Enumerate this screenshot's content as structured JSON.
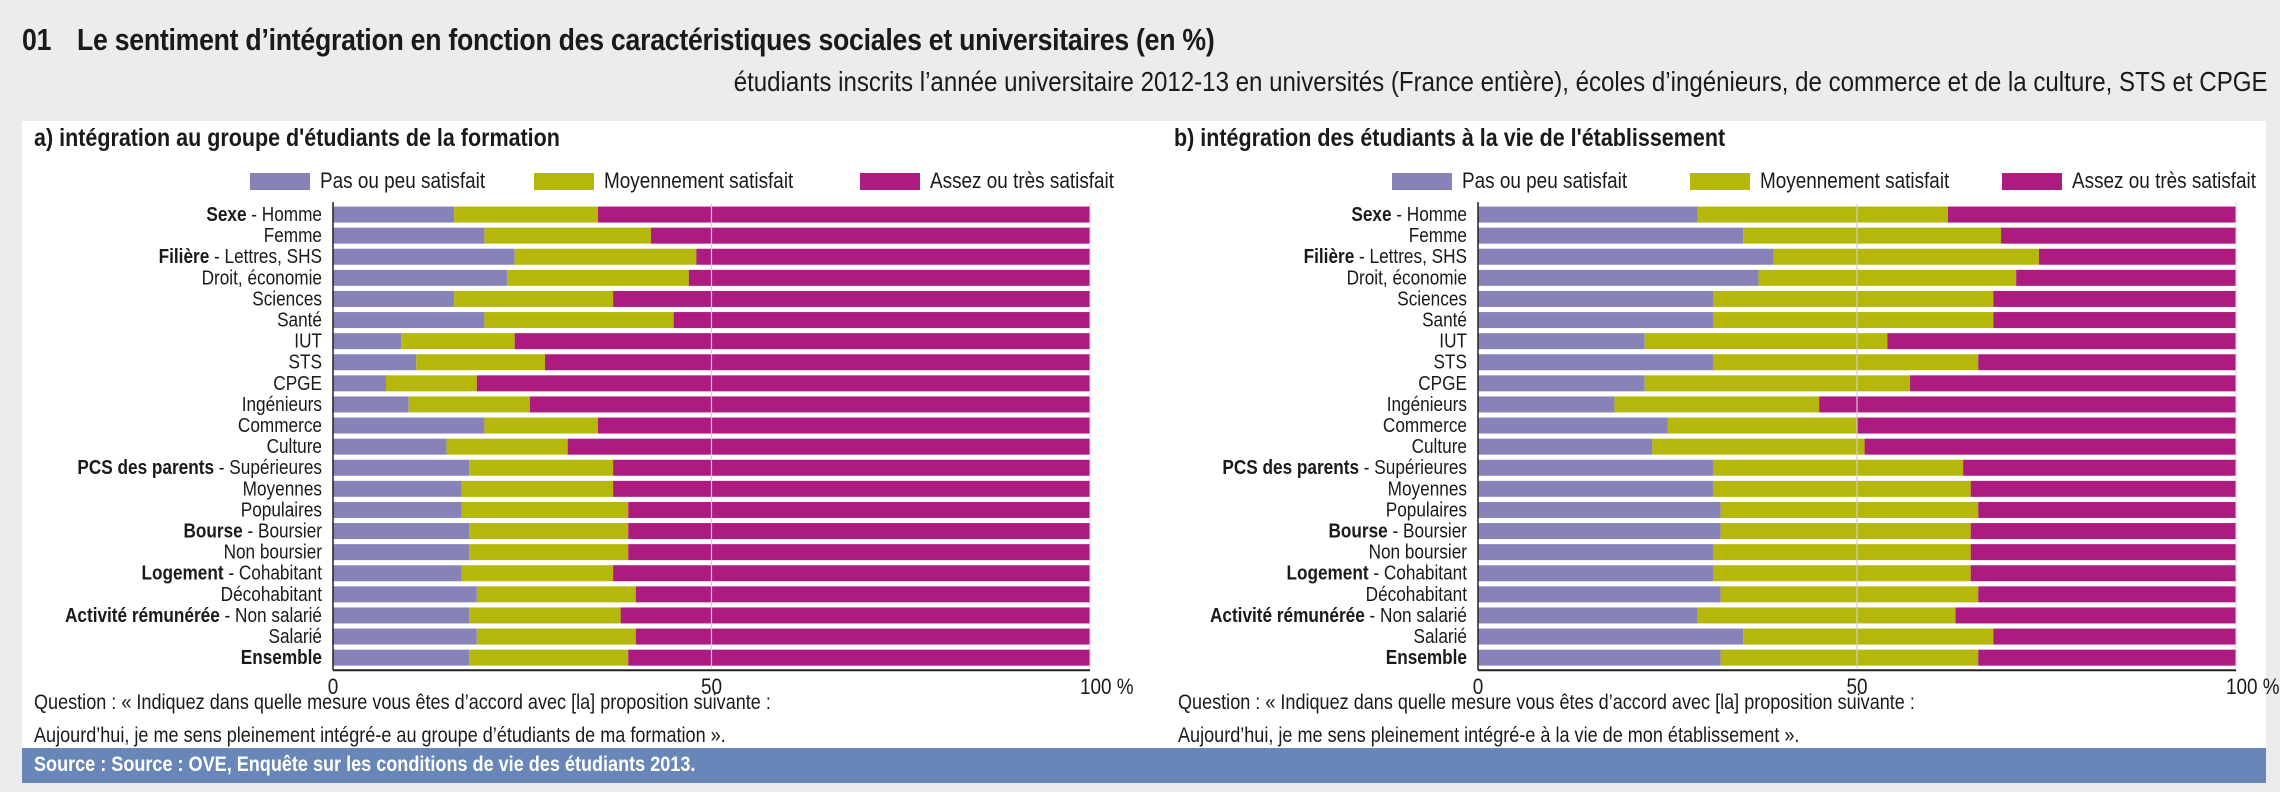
{
  "header": {
    "number": "01",
    "title": "Le sentiment d’intégration en fonction des caractéristiques sociales et universitaires (en %)",
    "subtitle": "étudiants inscrits l’année universitaire 2012-13 en universités (France entière), écoles d’ingénieurs, de commerce et de la culture, STS et CPGE"
  },
  "colors": {
    "pas_ou_peu": "#8783b9",
    "moyennement": "#b5b80b",
    "assez_ou_tres": "#ad1a80",
    "source_bar": "#6887b8",
    "background": "#ececec"
  },
  "footer": {
    "source": "Source : Source : OVE, Enquête sur les conditions de vie des étudiants 2013."
  },
  "chart_data": [
    {
      "type": "bar",
      "orientation": "horizontal-stacked-100",
      "title": "a) intégration au groupe d'étudiants de la formation",
      "legend": [
        "Pas ou peu satisfait",
        "Moyennement satisfait",
        "Assez ou très satisfait"
      ],
      "legend_position": "top-right",
      "xlim": [
        0,
        100
      ],
      "xticks": [
        "0",
        "50",
        "100 %"
      ],
      "xtick_values": [
        0,
        50,
        100
      ],
      "grid": "vertical at 50",
      "categories": [
        {
          "group": "Sexe",
          "label": "Homme"
        },
        {
          "group": "",
          "label": "Femme"
        },
        {
          "group": "Filière",
          "label": "Lettres, SHS"
        },
        {
          "group": "",
          "label": "Droit, économie"
        },
        {
          "group": "",
          "label": "Sciences"
        },
        {
          "group": "",
          "label": "Santé"
        },
        {
          "group": "",
          "label": "IUT"
        },
        {
          "group": "",
          "label": "STS"
        },
        {
          "group": "",
          "label": "CPGE"
        },
        {
          "group": "",
          "label": "Ingénieurs"
        },
        {
          "group": "",
          "label": "Commerce"
        },
        {
          "group": "",
          "label": "Culture"
        },
        {
          "group": "PCS des parents",
          "label": "Supérieures"
        },
        {
          "group": "",
          "label": "Moyennes"
        },
        {
          "group": "",
          "label": "Populaires"
        },
        {
          "group": "Bourse",
          "label": "Boursier"
        },
        {
          "group": "",
          "label": "Non boursier"
        },
        {
          "group": "Logement",
          "label": "Cohabitant"
        },
        {
          "group": "",
          "label": "Décohabitant"
        },
        {
          "group": "Activité rémunérée",
          "label": "Non salarié"
        },
        {
          "group": "",
          "label": "Salarié"
        },
        {
          "group": "Ensemble",
          "label": ""
        }
      ],
      "series": [
        {
          "name": "Pas ou peu satisfait",
          "values": [
            16,
            20,
            24,
            23,
            16,
            20,
            9,
            11,
            7,
            10,
            20,
            15,
            18,
            17,
            17,
            18,
            18,
            17,
            19,
            18,
            19,
            18
          ]
        },
        {
          "name": "Moyennement satisfait",
          "values": [
            19,
            22,
            24,
            24,
            21,
            25,
            15,
            17,
            12,
            16,
            15,
            16,
            19,
            20,
            22,
            21,
            21,
            20,
            21,
            20,
            21,
            21
          ]
        },
        {
          "name": "Assez ou très satisfait",
          "values": [
            65,
            58,
            52,
            53,
            63,
            55,
            76,
            72,
            81,
            74,
            65,
            69,
            63,
            63,
            61,
            61,
            61,
            63,
            60,
            62,
            60,
            61
          ]
        }
      ],
      "question": [
        "Question : « Indiquez dans quelle mesure vous êtes d’accord avec [la] proposition suivante :",
        "Aujourd’hui, je me sens pleinement intégré-e au groupe d’étudiants de ma formation »."
      ]
    },
    {
      "type": "bar",
      "orientation": "horizontal-stacked-100",
      "title": "b) intégration des étudiants à la vie de l'établissement",
      "legend": [
        "Pas ou peu satisfait",
        "Moyennement satisfait",
        "Assez ou très satisfait"
      ],
      "legend_position": "top-right",
      "xlim": [
        0,
        100
      ],
      "xticks": [
        "0",
        "50",
        "100 %"
      ],
      "xtick_values": [
        0,
        50,
        100
      ],
      "grid": "vertical at 50",
      "categories": [
        {
          "group": "Sexe",
          "label": "Homme"
        },
        {
          "group": "",
          "label": "Femme"
        },
        {
          "group": "Filière",
          "label": "Lettres, SHS"
        },
        {
          "group": "",
          "label": "Droit, économie"
        },
        {
          "group": "",
          "label": "Sciences"
        },
        {
          "group": "",
          "label": "Santé"
        },
        {
          "group": "",
          "label": "IUT"
        },
        {
          "group": "",
          "label": "STS"
        },
        {
          "group": "",
          "label": "CPGE"
        },
        {
          "group": "",
          "label": "Ingénieurs"
        },
        {
          "group": "",
          "label": "Commerce"
        },
        {
          "group": "",
          "label": "Culture"
        },
        {
          "group": "PCS des parents",
          "label": "Supérieures"
        },
        {
          "group": "",
          "label": "Moyennes"
        },
        {
          "group": "",
          "label": "Populaires"
        },
        {
          "group": "Bourse",
          "label": "Boursier"
        },
        {
          "group": "",
          "label": "Non boursier"
        },
        {
          "group": "Logement",
          "label": "Cohabitant"
        },
        {
          "group": "",
          "label": "Décohabitant"
        },
        {
          "group": "Activité rémunérée",
          "label": "Non salarié"
        },
        {
          "group": "",
          "label": "Salarié"
        },
        {
          "group": "Ensemble",
          "label": ""
        }
      ],
      "series": [
        {
          "name": "Pas ou peu satisfait",
          "values": [
            29,
            35,
            39,
            37,
            31,
            31,
            22,
            31,
            22,
            18,
            25,
            23,
            31,
            31,
            32,
            32,
            31,
            31,
            32,
            29,
            35,
            32
          ]
        },
        {
          "name": "Moyennement satisfait",
          "values": [
            33,
            34,
            35,
            34,
            37,
            37,
            32,
            35,
            35,
            27,
            25,
            28,
            33,
            34,
            34,
            33,
            34,
            34,
            34,
            34,
            33,
            34
          ]
        },
        {
          "name": "Assez ou très satisfait",
          "values": [
            38,
            31,
            26,
            29,
            32,
            32,
            46,
            34,
            43,
            55,
            50,
            49,
            36,
            35,
            34,
            35,
            35,
            35,
            34,
            37,
            32,
            34
          ]
        }
      ],
      "question": [
        "Question : « Indiquez dans quelle mesure vous êtes d’accord avec [la] proposition suivante :",
        "Aujourd’hui, je me sens pleinement intégré-e à la vie de mon établissement »."
      ]
    }
  ]
}
